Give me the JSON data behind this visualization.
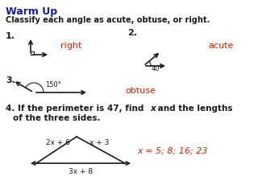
{
  "title": "Warm Up",
  "subtitle": "Classify each angle as acute, obtuse, or right.",
  "bg_color": "#ffffff",
  "text_color": "#1a1a1a",
  "red_color": "#dd2200",
  "dark_blue": "#1a1a9c",
  "angle1_answer": "right",
  "angle2_answer": "acute",
  "angle2_deg": "40°",
  "angle3_deg": "150°",
  "angle3_answer": "obtuse",
  "side1": "2x + 6",
  "side2": "x + 3",
  "side3": "3x + 8",
  "answer4": "x = 5; 8; 16; 23"
}
